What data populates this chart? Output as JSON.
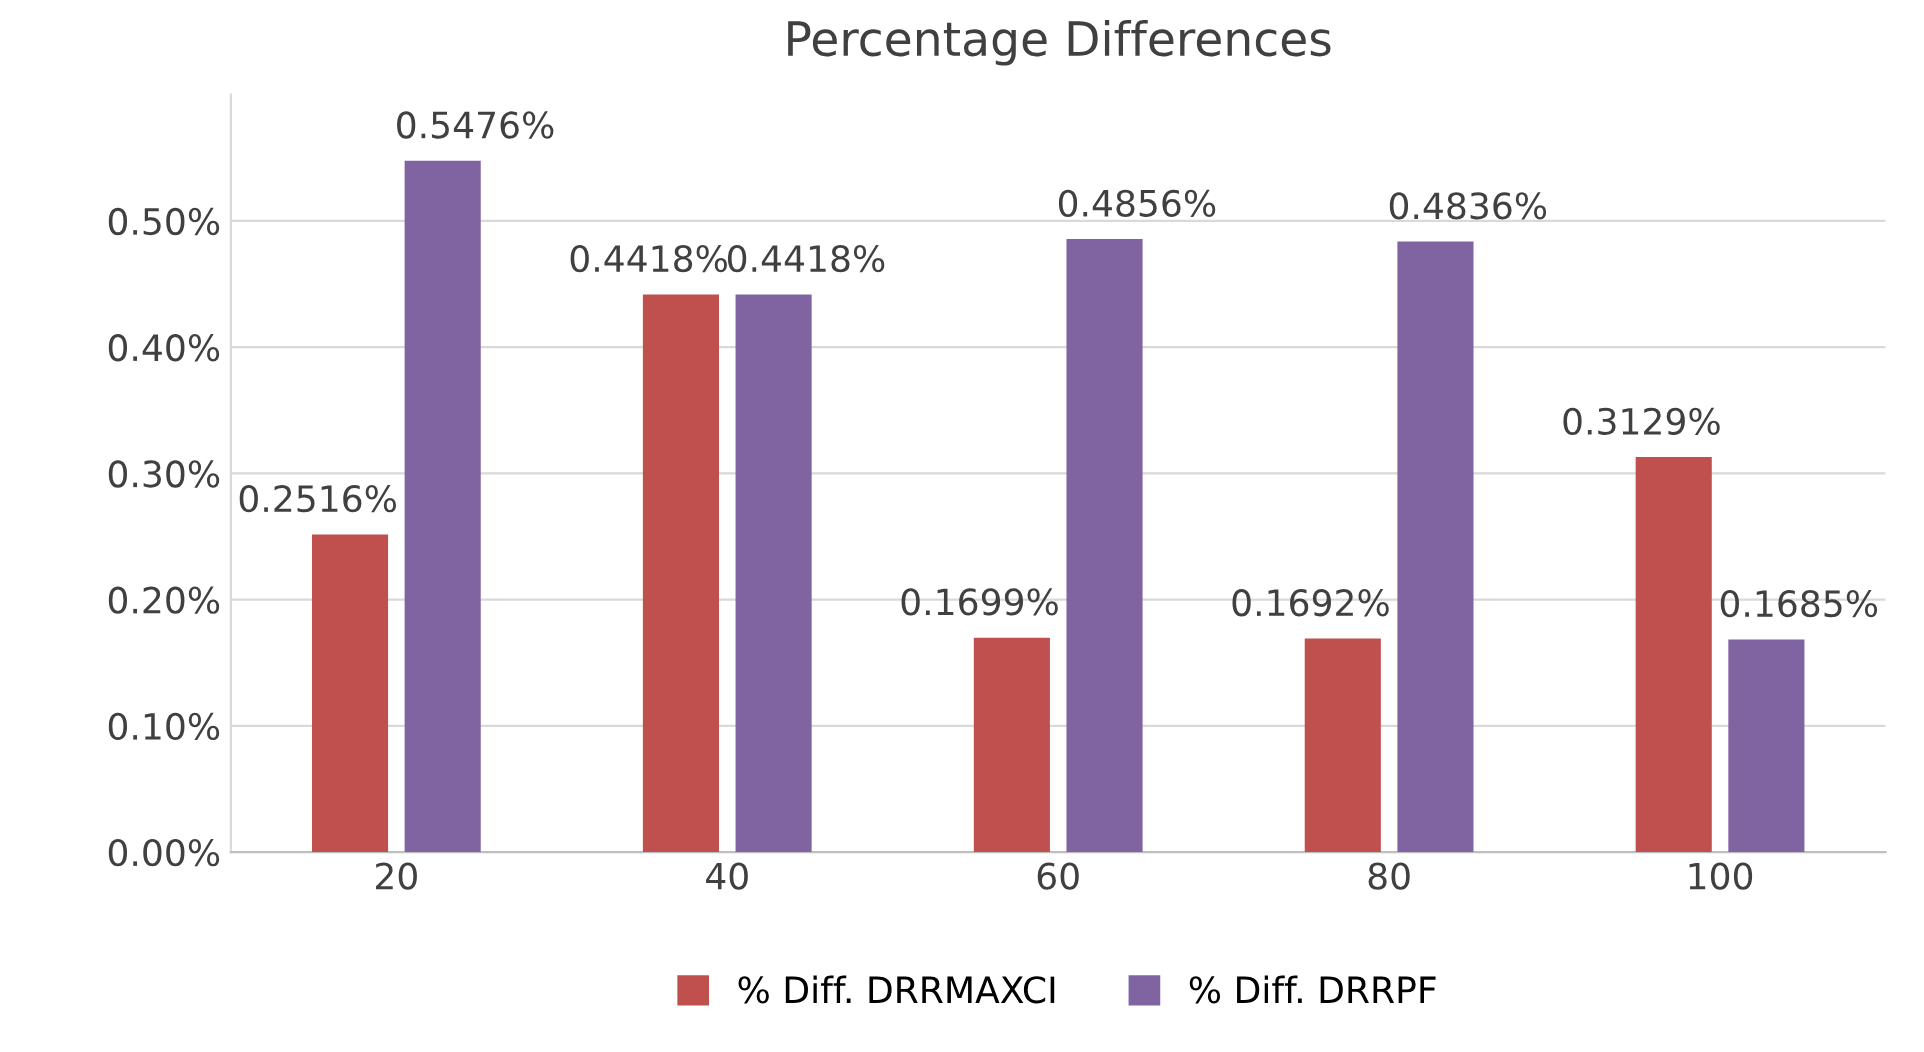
{
  "chart_data": {
    "type": "bar",
    "title": "Percentage Differences",
    "categories": [
      "20",
      "40",
      "60",
      "80",
      "100"
    ],
    "series": [
      {
        "name": "% Diff. DRRMAXCI",
        "color": "#c0504d",
        "values": [
          0.2516,
          0.4418,
          0.1699,
          0.1692,
          0.3129
        ],
        "value_labels": [
          "0.2516%",
          "0.4418%",
          "0.1699%",
          "0.1692%",
          "0.3129%"
        ]
      },
      {
        "name": "% Diff. DRRPF",
        "color": "#8064a2",
        "values": [
          0.5476,
          0.4418,
          0.4856,
          0.4836,
          0.1685
        ],
        "value_labels": [
          "0.5476%",
          "0.4418%",
          "0.4856%",
          "0.4836%",
          "0.1685%"
        ]
      }
    ],
    "ylim": [
      0,
      0.6
    ],
    "yticks": [
      {
        "value": 0,
        "label": "0.00%"
      },
      {
        "value": 0.1,
        "label": "0.10%"
      },
      {
        "value": 0.2,
        "label": "0.20%"
      },
      {
        "value": 0.3,
        "label": "0.30%"
      },
      {
        "value": 0.4,
        "label": "0.40%"
      },
      {
        "value": 0.5,
        "label": "0.50%"
      }
    ],
    "grid": "y",
    "legend": "bottom"
  }
}
